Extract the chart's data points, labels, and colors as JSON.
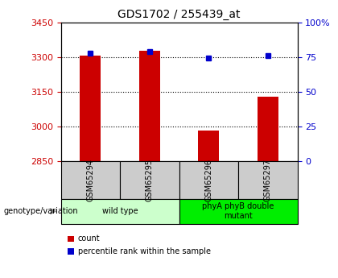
{
  "title": "GDS1702 / 255439_at",
  "samples": [
    "GSM65294",
    "GSM65295",
    "GSM65296",
    "GSM65297"
  ],
  "counts": [
    3306,
    3328,
    2984,
    3130
  ],
  "percentiles": [
    78,
    79,
    74,
    76
  ],
  "ylim_left": [
    2850,
    3450
  ],
  "ylim_right": [
    0,
    100
  ],
  "yticks_left": [
    2850,
    3000,
    3150,
    3300,
    3450
  ],
  "yticks_right": [
    0,
    25,
    50,
    75,
    100
  ],
  "yticklabels_right": [
    "0",
    "25",
    "50",
    "75",
    "100%"
  ],
  "bar_color": "#cc0000",
  "dot_color": "#0000cc",
  "bar_width": 0.35,
  "groups": [
    {
      "label": "wild type",
      "samples": [
        0,
        1
      ],
      "color": "#ccffcc"
    },
    {
      "label": "phyA phyB double\nmutant",
      "samples": [
        2,
        3
      ],
      "color": "#00ee00"
    }
  ],
  "background_color": "#ffffff",
  "tick_color_left": "#cc0000",
  "tick_color_right": "#0000cc",
  "sample_box_color": "#cccccc",
  "legend_items": [
    "count",
    "percentile rank within the sample"
  ],
  "genotype_label": "genotype/variation"
}
